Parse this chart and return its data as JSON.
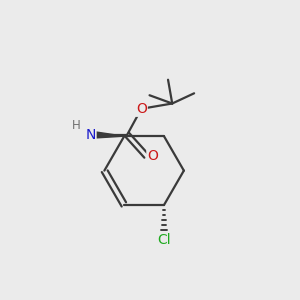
{
  "background_color": "#ebebeb",
  "bond_color": "#3a3a3a",
  "bond_width": 1.6,
  "atom_colors": {
    "N": "#1a1acc",
    "O": "#cc1a1a",
    "Cl": "#1faa1f",
    "H": "#707070"
  },
  "font_size_atom": 10,
  "font_size_H": 8.5,
  "font_size_Cl": 10
}
